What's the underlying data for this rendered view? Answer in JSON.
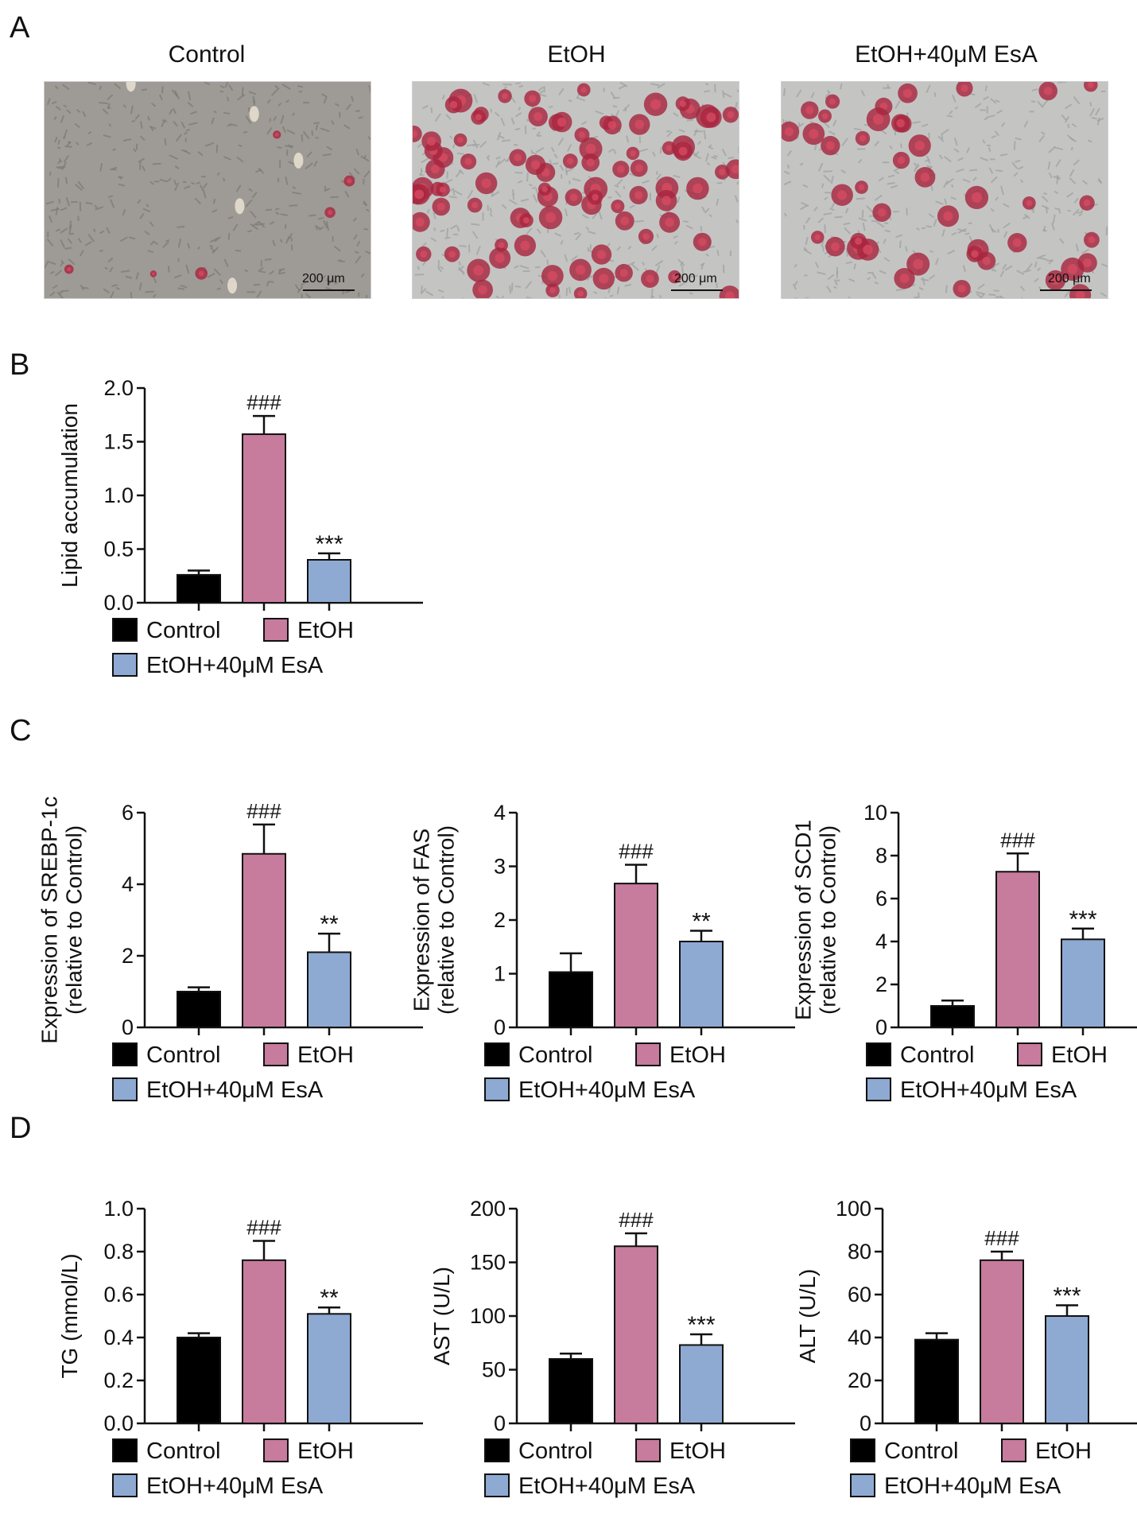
{
  "panel_letters": [
    "A",
    "B",
    "C",
    "D"
  ],
  "micrographs": [
    {
      "title": "Control",
      "scale": "200 μm",
      "stain": "sparse"
    },
    {
      "title": "EtOH",
      "scale": "200 μm",
      "stain": "dense"
    },
    {
      "title": "EtOH+40μM EsA",
      "scale": "200 μm",
      "stain": "moderate"
    }
  ],
  "colors": {
    "Control": "#000000",
    "EtOH": "#c77b9d",
    "EtOH+40μM EsA": "#8eaad2"
  },
  "legend": [
    "Control",
    "EtOH",
    "EtOH+40μM EsA"
  ],
  "chart_data": [
    {
      "id": "B1",
      "type": "bar",
      "categories": [
        "Control",
        "EtOH",
        "EtOH+40μM EsA"
      ],
      "values": [
        0.26,
        1.57,
        0.4
      ],
      "errors": [
        0.04,
        0.17,
        0.06
      ],
      "annotations": [
        "",
        "###",
        "***"
      ],
      "ylabel": [
        "Lipid accumulation"
      ],
      "ylim": [
        0,
        2.0
      ],
      "ticks": [
        "0.0",
        "0.5",
        "1.0",
        "1.5",
        "2.0"
      ]
    },
    {
      "id": "C1",
      "type": "bar",
      "categories": [
        "Control",
        "EtOH",
        "EtOH+40μM EsA"
      ],
      "values": [
        1.0,
        4.85,
        2.1
      ],
      "errors": [
        0.12,
        0.82,
        0.52
      ],
      "annotations": [
        "",
        "###",
        "**"
      ],
      "ylabel": [
        "Expression of SREBP-1c",
        "(relative to Control)"
      ],
      "ylim": [
        0,
        6
      ],
      "ticks": [
        "0",
        "2",
        "4",
        "6"
      ]
    },
    {
      "id": "C2",
      "type": "bar",
      "categories": [
        "Control",
        "EtOH",
        "EtOH+40μM EsA"
      ],
      "values": [
        1.03,
        2.68,
        1.6
      ],
      "errors": [
        0.35,
        0.35,
        0.2
      ],
      "annotations": [
        "",
        "###",
        "**"
      ],
      "ylabel": [
        "Expression of FAS",
        "(relative to Control)"
      ],
      "ylim": [
        0,
        4
      ],
      "ticks": [
        "0",
        "1",
        "2",
        "3",
        "4"
      ]
    },
    {
      "id": "C3",
      "type": "bar",
      "categories": [
        "Control",
        "EtOH",
        "EtOH+40μM EsA"
      ],
      "values": [
        1.0,
        7.25,
        4.1
      ],
      "errors": [
        0.25,
        0.85,
        0.5
      ],
      "annotations": [
        "",
        "###",
        "***"
      ],
      "ylabel": [
        "Expression of SCD1",
        "(relative to Control)"
      ],
      "ylim": [
        0,
        10
      ],
      "ticks": [
        "0",
        "2",
        "4",
        "6",
        "8",
        "10"
      ]
    },
    {
      "id": "D1",
      "type": "bar",
      "categories": [
        "Control",
        "EtOH",
        "EtOH+40μM EsA"
      ],
      "values": [
        0.4,
        0.76,
        0.51
      ],
      "errors": [
        0.02,
        0.09,
        0.03
      ],
      "annotations": [
        "",
        "###",
        "**"
      ],
      "ylabel": [
        "TG (mmol/L)"
      ],
      "ylim": [
        0,
        1.0
      ],
      "ticks": [
        "0.0",
        "0.2",
        "0.4",
        "0.6",
        "0.8",
        "1.0"
      ]
    },
    {
      "id": "D2",
      "type": "bar",
      "categories": [
        "Control",
        "EtOH",
        "EtOH+40μM EsA"
      ],
      "values": [
        60,
        165,
        73
      ],
      "errors": [
        5,
        12,
        10
      ],
      "annotations": [
        "",
        "###",
        "***"
      ],
      "ylabel": [
        "AST (U/L)"
      ],
      "ylim": [
        0,
        200
      ],
      "ticks": [
        "0",
        "50",
        "100",
        "150",
        "200"
      ]
    },
    {
      "id": "D3",
      "type": "bar",
      "categories": [
        "Control",
        "EtOH",
        "EtOH+40μM EsA"
      ],
      "values": [
        39,
        76,
        50
      ],
      "errors": [
        3,
        4,
        5
      ],
      "annotations": [
        "",
        "###",
        "***"
      ],
      "ylabel": [
        "ALT (U/L)"
      ],
      "ylim": [
        0,
        100
      ],
      "ticks": [
        "0",
        "20",
        "40",
        "60",
        "80",
        "100"
      ]
    }
  ]
}
